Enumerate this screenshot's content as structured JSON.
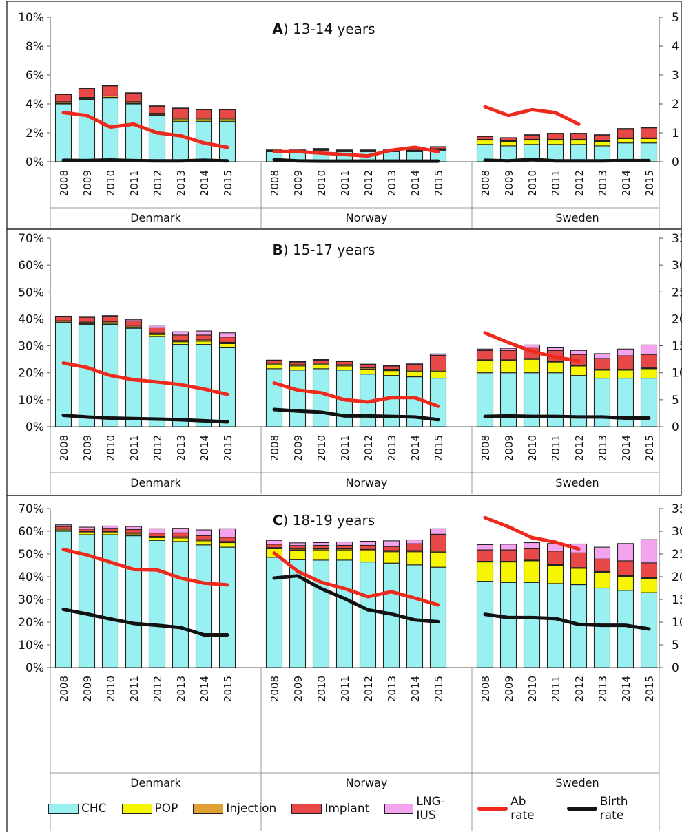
{
  "colors": {
    "CHC": "#99f0f0",
    "POP": "#f6f600",
    "Injection": "#e1a032",
    "Implant": "#e84848",
    "LNG-IUS": "#f4a4ee",
    "ab_rate": "#ee2a1c",
    "birth_rate": "#121212"
  },
  "legend": {
    "chc": "CHC",
    "pop": "POP",
    "injection": "Injection",
    "implant": "Implant",
    "lng_ius": "LNG-IUS",
    "ab_rate": "Ab rate",
    "birth_rate": "Birth rate"
  },
  "chart_data": [
    {
      "type": "bar",
      "title": "13-14 years",
      "panel_letter": "A",
      "panel_suffix": ")",
      "stacked": true,
      "categories": [
        "2008",
        "2009",
        "2010",
        "2011",
        "2012",
        "2013",
        "2014",
        "2015"
      ],
      "groups": [
        "Denmark",
        "Norway",
        "Sweden"
      ],
      "ylim": [
        0,
        10
      ],
      "yticks": [
        "0%",
        "2%",
        "4%",
        "6%",
        "8%",
        "10%"
      ],
      "y2lim": [
        0,
        5
      ],
      "y2ticks": [
        "0",
        "1",
        "2",
        "3",
        "4",
        "5"
      ],
      "series": [
        {
          "name": "CHC",
          "values": {
            "Denmark": [
              4.0,
              4.3,
              4.4,
              4.0,
              3.2,
              2.8,
              2.8,
              2.8
            ],
            "Norway": [
              0.7,
              0.7,
              0.8,
              0.7,
              0.7,
              0.7,
              0.7,
              0.8
            ],
            "Sweden": [
              1.2,
              1.1,
              1.2,
              1.2,
              1.2,
              1.1,
              1.3,
              1.3
            ]
          }
        },
        {
          "name": "POP",
          "values": {
            "Denmark": [
              0.05,
              0.05,
              0.05,
              0.05,
              0.05,
              0.1,
              0.1,
              0.1
            ],
            "Norway": [
              0.02,
              0.02,
              0.02,
              0.02,
              0.02,
              0.02,
              0.05,
              0.05
            ],
            "Sweden": [
              0.3,
              0.3,
              0.3,
              0.3,
              0.3,
              0.3,
              0.3,
              0.3
            ]
          }
        },
        {
          "name": "Injection",
          "values": {
            "Denmark": [
              0.1,
              0.1,
              0.1,
              0.1,
              0.1,
              0.1,
              0.1,
              0.1
            ],
            "Norway": [
              0.05,
              0.05,
              0.05,
              0.05,
              0.05,
              0.05,
              0.05,
              0.05
            ],
            "Sweden": [
              0.05,
              0.05,
              0.05,
              0.05,
              0.05,
              0.05,
              0.05,
              0.05
            ]
          }
        },
        {
          "name": "Implant",
          "values": {
            "Denmark": [
              0.5,
              0.6,
              0.7,
              0.6,
              0.5,
              0.7,
              0.6,
              0.6
            ],
            "Norway": [
              0.05,
              0.05,
              0.05,
              0.05,
              0.05,
              0.05,
              0.1,
              0.15
            ],
            "Sweden": [
              0.2,
              0.2,
              0.3,
              0.4,
              0.4,
              0.4,
              0.6,
              0.7
            ]
          }
        },
        {
          "name": "LNG-IUS",
          "values": {
            "Denmark": [
              0.02,
              0.02,
              0.02,
              0.02,
              0.02,
              0.02,
              0.02,
              0.02
            ],
            "Norway": [
              0.0,
              0.0,
              0.0,
              0.0,
              0.0,
              0.0,
              0.0,
              0.0
            ],
            "Sweden": [
              0.02,
              0.02,
              0.02,
              0.02,
              0.02,
              0.02,
              0.05,
              0.05
            ]
          }
        }
      ],
      "lines": [
        {
          "name": "Ab rate",
          "axis": "right",
          "values": {
            "Denmark": [
              1.7,
              1.6,
              1.2,
              1.3,
              1.0,
              0.9,
              0.65,
              0.5
            ],
            "Norway": [
              0.35,
              0.35,
              0.3,
              0.25,
              0.2,
              0.4,
              0.5,
              0.35
            ],
            "Sweden": [
              1.9,
              1.6,
              1.8,
              1.7,
              1.3,
              null,
              null,
              null
            ]
          }
        },
        {
          "name": "Birth rate",
          "axis": "right",
          "values": {
            "Denmark": [
              0.05,
              0.04,
              0.06,
              0.04,
              0.03,
              0.03,
              0.05,
              0.03
            ],
            "Norway": [
              0.07,
              0.03,
              0.02,
              0.02,
              0.02,
              0.02,
              0.02,
              0.02
            ],
            "Sweden": [
              0.05,
              0.03,
              0.08,
              0.03,
              0.03,
              0.03,
              0.04,
              0.04
            ]
          }
        }
      ]
    },
    {
      "type": "bar",
      "title": "15-17 years",
      "panel_letter": "B",
      "panel_suffix": ")",
      "stacked": true,
      "categories": [
        "2008",
        "2009",
        "2010",
        "2011",
        "2012",
        "2013",
        "2014",
        "2015"
      ],
      "groups": [
        "Denmark",
        "Norway",
        "Sweden"
      ],
      "ylim": [
        0,
        70
      ],
      "yticks": [
        "0%",
        "10%",
        "20%",
        "30%",
        "40%",
        "50%",
        "60%",
        "70%"
      ],
      "y2lim": [
        0,
        35
      ],
      "y2ticks": [
        "0",
        "5",
        "10",
        "15",
        "20",
        "25",
        "30",
        "35"
      ],
      "series": [
        {
          "name": "CHC",
          "values": {
            "Denmark": [
              38.5,
              38.0,
              38.0,
              36.5,
              33.5,
              30.5,
              30.5,
              29.5
            ],
            "Norway": [
              21.5,
              21.0,
              21.5,
              21.0,
              19.5,
              19.0,
              18.5,
              18.0
            ],
            "Sweden": [
              20.0,
              20.0,
              20.0,
              20.0,
              19.0,
              18.0,
              18.0,
              18.0
            ]
          }
        },
        {
          "name": "POP",
          "values": {
            "Denmark": [
              0.3,
              0.3,
              0.4,
              0.5,
              0.7,
              1.0,
              1.2,
              1.3
            ],
            "Norway": [
              1.5,
              1.5,
              1.5,
              1.5,
              1.8,
              1.8,
              2.0,
              2.5
            ],
            "Sweden": [
              4.5,
              4.5,
              5.0,
              4.0,
              3.5,
              3.0,
              3.0,
              3.5
            ]
          }
        },
        {
          "name": "Injection",
          "values": {
            "Denmark": [
              0.5,
              0.5,
              0.5,
              0.5,
              0.5,
              0.5,
              0.5,
              0.5
            ],
            "Norway": [
              0.5,
              0.5,
              0.5,
              0.5,
              0.5,
              0.5,
              0.5,
              0.5
            ],
            "Sweden": [
              0.3,
              0.3,
              0.3,
              0.3,
              0.3,
              0.3,
              0.3,
              0.3
            ]
          }
        },
        {
          "name": "Implant",
          "values": {
            "Denmark": [
              1.5,
              1.8,
              2.0,
              1.8,
              2.0,
              2.0,
              1.8,
              2.0
            ],
            "Norway": [
              1.0,
              1.0,
              1.2,
              1.2,
              1.2,
              1.2,
              2.0,
              5.5
            ],
            "Sweden": [
              3.5,
              3.5,
              4.0,
              4.0,
              4.0,
              4.0,
              5.0,
              5.0
            ]
          }
        },
        {
          "name": "LNG-IUS",
          "values": {
            "Denmark": [
              0.2,
              0.3,
              0.3,
              0.5,
              0.8,
              1.2,
              1.5,
              1.5
            ],
            "Norway": [
              0.2,
              0.2,
              0.2,
              0.2,
              0.2,
              0.2,
              0.3,
              0.5
            ],
            "Sweden": [
              0.5,
              0.8,
              1.0,
              1.2,
              1.5,
              1.8,
              2.5,
              3.5
            ]
          }
        }
      ],
      "lines": [
        {
          "name": "Ab rate",
          "axis": "right",
          "values": {
            "Denmark": [
              11.8,
              11.0,
              9.5,
              8.7,
              8.3,
              7.8,
              7.0,
              6.0
            ],
            "Norway": [
              8.1,
              6.8,
              6.3,
              5.0,
              4.6,
              5.4,
              5.4,
              3.8
            ],
            "Sweden": [
              17.4,
              15.6,
              14.0,
              12.9,
              12.2,
              null,
              null,
              null
            ]
          }
        },
        {
          "name": "Birth rate",
          "axis": "right",
          "values": {
            "Denmark": [
              2.1,
              1.8,
              1.6,
              1.5,
              1.4,
              1.3,
              1.1,
              0.9
            ],
            "Norway": [
              3.2,
              2.9,
              2.7,
              2.0,
              2.0,
              1.9,
              1.8,
              1.3
            ],
            "Sweden": [
              1.9,
              2.0,
              1.9,
              1.9,
              1.8,
              1.8,
              1.6,
              1.6
            ]
          }
        }
      ]
    },
    {
      "type": "bar",
      "title": "18-19 years",
      "panel_letter": "C",
      "panel_suffix": ")",
      "stacked": true,
      "categories": [
        "2008",
        "2009",
        "2010",
        "2011",
        "2012",
        "2013",
        "2014",
        "2015"
      ],
      "groups": [
        "Denmark",
        "Norway",
        "Sweden"
      ],
      "ylim": [
        0,
        70
      ],
      "yticks": [
        "0%",
        "10%",
        "20%",
        "30%",
        "40%",
        "50%",
        "60%",
        "70%"
      ],
      "y2lim": [
        0,
        35
      ],
      "y2ticks": [
        "0",
        "5",
        "10",
        "15",
        "20",
        "25",
        "30",
        "35"
      ],
      "series": [
        {
          "name": "CHC",
          "values": {
            "Denmark": [
              60.0,
              58.5,
              58.5,
              58.0,
              56.0,
              55.5,
              54.0,
              53.0
            ],
            "Norway": [
              48.5,
              47.5,
              47.3,
              47.3,
              46.5,
              46.0,
              45.2,
              44.2
            ],
            "Sweden": [
              38.0,
              37.5,
              37.5,
              37.0,
              36.5,
              35.0,
              34.0,
              33.0
            ]
          }
        },
        {
          "name": "POP",
          "values": {
            "Denmark": [
              0.6,
              0.8,
              0.8,
              0.8,
              1.2,
              1.5,
              1.8,
              2.0
            ],
            "Norway": [
              3.8,
              4.2,
              4.5,
              4.5,
              5.0,
              5.0,
              5.8,
              6.5
            ],
            "Sweden": [
              8.5,
              9.0,
              9.5,
              8.0,
              7.2,
              7.0,
              6.2,
              6.3
            ]
          }
        },
        {
          "name": "Injection",
          "values": {
            "Denmark": [
              0.5,
              0.5,
              0.5,
              0.5,
              0.5,
              0.5,
              0.5,
              0.5
            ],
            "Norway": [
              0.5,
              0.5,
              0.5,
              0.5,
              0.5,
              0.5,
              0.5,
              0.5
            ],
            "Sweden": [
              0.3,
              0.3,
              0.3,
              0.3,
              0.3,
              0.3,
              0.3,
              0.3
            ]
          }
        },
        {
          "name": "Implant",
          "values": {
            "Denmark": [
              1.0,
              1.2,
              1.5,
              1.5,
              1.5,
              1.8,
              1.8,
              1.8
            ],
            "Norway": [
              1.5,
              1.5,
              1.5,
              1.5,
              1.8,
              1.8,
              3.0,
              7.5
            ],
            "Sweden": [
              5.0,
              5.0,
              5.0,
              6.0,
              6.5,
              5.5,
              6.5,
              6.5
            ]
          }
        },
        {
          "name": "LNG-IUS",
          "values": {
            "Denmark": [
              0.7,
              0.8,
              1.0,
              1.3,
              1.9,
              2.0,
              2.5,
              3.8
            ],
            "Norway": [
              1.7,
              1.2,
              1.2,
              1.5,
              1.8,
              2.5,
              1.7,
              2.4
            ],
            "Sweden": [
              2.3,
              2.5,
              2.7,
              3.3,
              3.9,
              5.2,
              7.6,
              10.2
            ]
          }
        }
      ],
      "lines": [
        {
          "name": "Ab rate",
          "axis": "right",
          "values": {
            "Denmark": [
              26.0,
              24.8,
              23.2,
              21.6,
              21.5,
              19.7,
              18.6,
              18.2
            ],
            "Norway": [
              25.2,
              21.2,
              18.8,
              17.4,
              15.6,
              16.7,
              15.3,
              13.8
            ],
            "Sweden": [
              33.0,
              31.0,
              28.6,
              27.6,
              26.1,
              null,
              null,
              null
            ]
          }
        },
        {
          "name": "Birth rate",
          "axis": "right",
          "values": {
            "Denmark": [
              12.8,
              11.8,
              10.7,
              9.7,
              9.3,
              8.8,
              7.2,
              7.2
            ],
            "Norway": [
              19.7,
              20.2,
              17.4,
              15.2,
              12.7,
              11.8,
              10.5,
              10.1
            ],
            "Sweden": [
              11.7,
              11.0,
              11.0,
              10.8,
              9.5,
              9.3,
              9.3,
              8.5
            ]
          }
        }
      ]
    }
  ]
}
